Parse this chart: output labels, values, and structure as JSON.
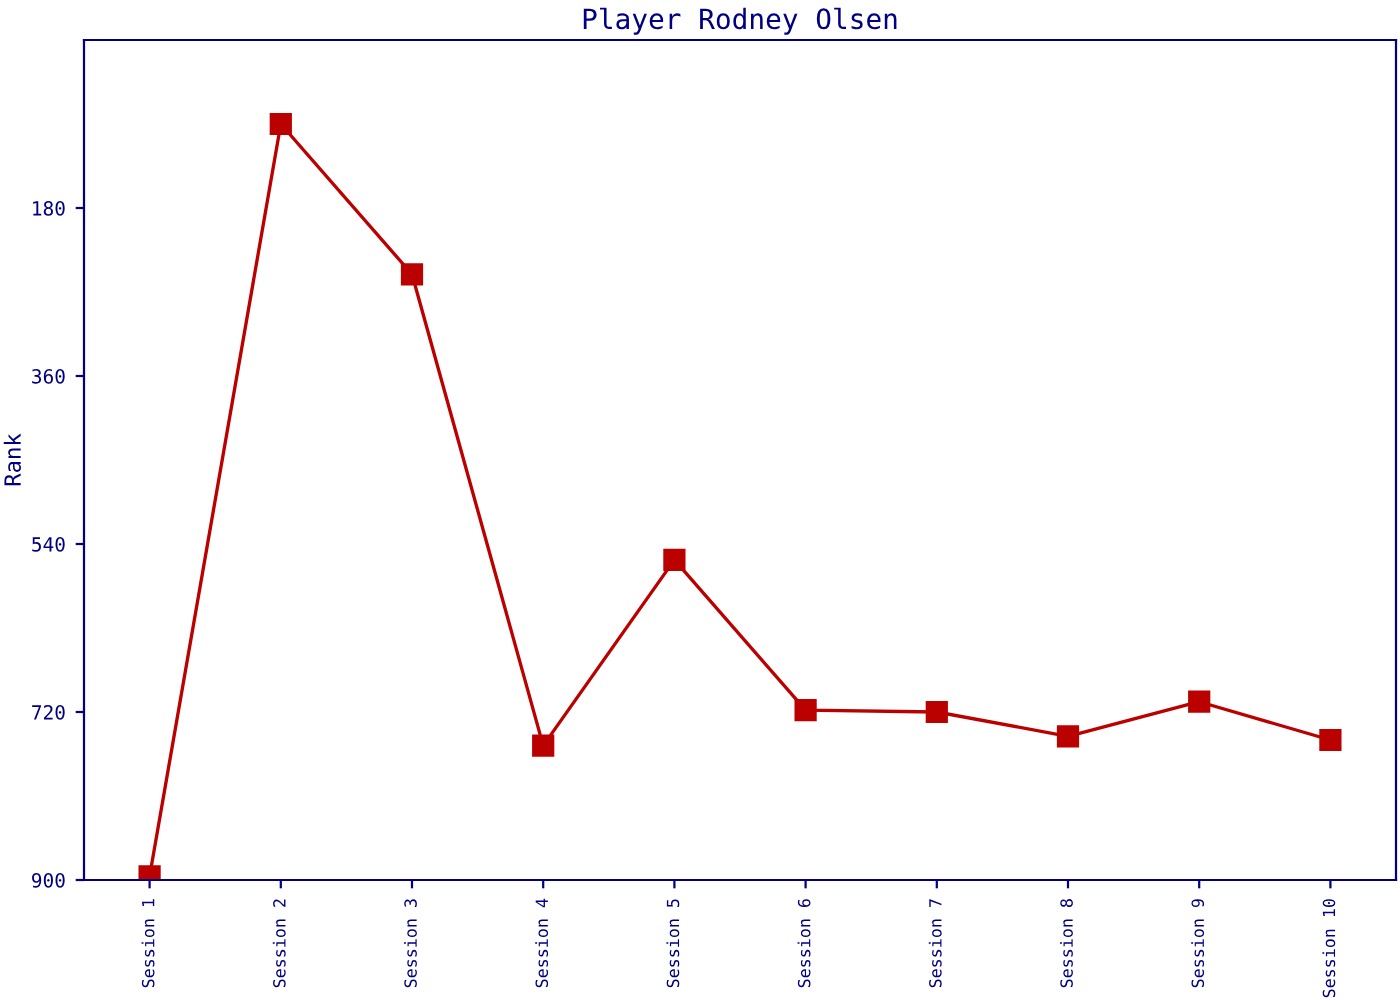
{
  "chart_data": {
    "type": "line",
    "title": "Player Rodney Olsen",
    "ylabel": "Rank",
    "categories": [
      "Session 1",
      "Session 2",
      "Session 3",
      "Session 4",
      "Session 5",
      "Session 6",
      "Session 7",
      "Session 8",
      "Session 9",
      "Session 10"
    ],
    "series": [
      {
        "color": "#bb0000",
        "values": [
          896,
          90,
          251,
          756,
          557,
          718,
          720,
          746,
          709,
          750
        ]
      }
    ],
    "ylim": [
      900,
      0
    ],
    "yticks": [
      180,
      360,
      540,
      720,
      900
    ],
    "grid": false,
    "marker": "square",
    "line_style": "solid"
  }
}
